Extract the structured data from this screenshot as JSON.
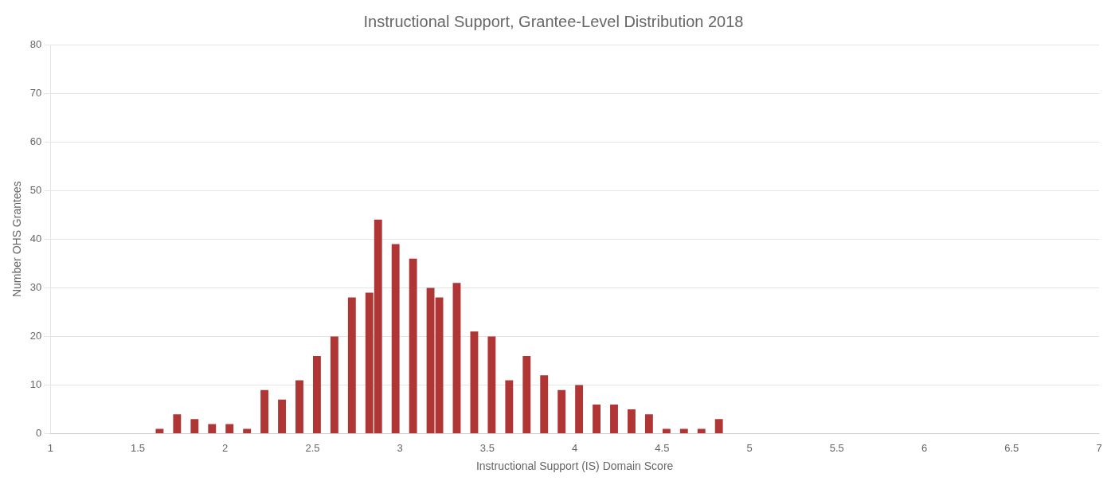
{
  "chart_data": {
    "type": "bar",
    "title": "Instructional Support, Grantee-Level Distribution 2018",
    "xlabel": "Instructional Support (IS) Domain Score",
    "ylabel": "Number OHS Grantees",
    "x": [
      1.625,
      1.725,
      1.825,
      1.925,
      2.025,
      2.125,
      2.225,
      2.325,
      2.425,
      2.525,
      2.625,
      2.725,
      2.825,
      2.875,
      2.975,
      3.075,
      3.175,
      3.225,
      3.325,
      3.425,
      3.525,
      3.625,
      3.725,
      3.825,
      3.925,
      4.025,
      4.125,
      4.225,
      4.325,
      4.425,
      4.525,
      4.625,
      4.725,
      4.825
    ],
    "values": [
      1,
      4,
      3,
      2,
      2,
      1,
      9,
      7,
      11,
      16,
      20,
      28,
      29,
      44,
      39,
      36,
      30,
      28,
      31,
      21,
      20,
      11,
      16,
      12,
      9,
      10,
      6,
      6,
      5,
      4,
      1,
      1,
      1,
      3
    ],
    "color": "#b03535",
    "xlim": [
      1,
      7
    ],
    "ylim": [
      0,
      80
    ],
    "xticks": [
      1,
      1.5,
      2,
      2.5,
      3,
      3.5,
      4,
      4.5,
      5,
      5.5,
      6,
      6.5,
      7
    ],
    "yticks": [
      0,
      10,
      20,
      30,
      40,
      50,
      60,
      70,
      80
    ],
    "grid": "y"
  }
}
